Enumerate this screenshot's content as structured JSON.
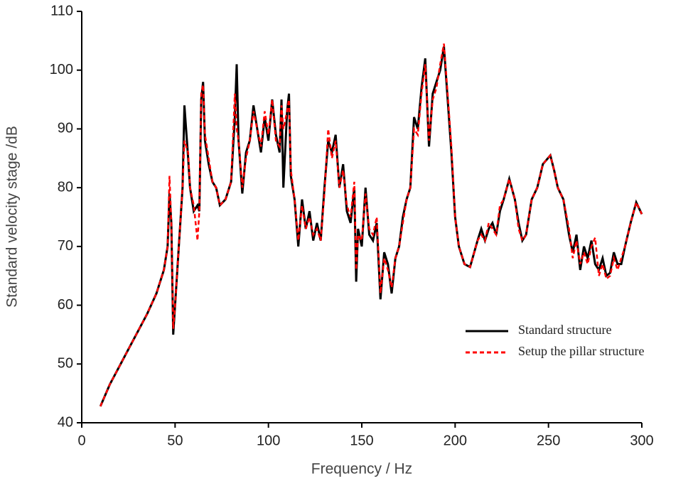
{
  "chart_data": {
    "type": "line",
    "xlabel": "Frequency / Hz",
    "ylabel": "Standard velocity stage /dB",
    "x": [
      10,
      15,
      20,
      25,
      30,
      35,
      40,
      44,
      46,
      47,
      48,
      49,
      50,
      52,
      54,
      55,
      57,
      58,
      60,
      62,
      63,
      64,
      65,
      66,
      68,
      70,
      72,
      74,
      77,
      80,
      82,
      83,
      84,
      86,
      88,
      90,
      92,
      94,
      96,
      98,
      100,
      102,
      104,
      106,
      107,
      108,
      110,
      111,
      112,
      114,
      116,
      118,
      120,
      122,
      124,
      126,
      128,
      130,
      132,
      134,
      136,
      138,
      140,
      142,
      144,
      146,
      147,
      148,
      150,
      152,
      154,
      156,
      158,
      160,
      162,
      164,
      166,
      168,
      170,
      172,
      174,
      176,
      178,
      180,
      182,
      184,
      186,
      188,
      190,
      192,
      194,
      196,
      198,
      200,
      202,
      205,
      208,
      212,
      214,
      216,
      218,
      220,
      222,
      224,
      226,
      229,
      232,
      234,
      236,
      238,
      241,
      244,
      247,
      251,
      253,
      255,
      258,
      261,
      263,
      265,
      267,
      269,
      271,
      273,
      275,
      277,
      279,
      281,
      283,
      285,
      287,
      289,
      291,
      294,
      297,
      300
    ],
    "series": [
      {
        "name": "Standard structure",
        "color": "#000000",
        "dash": false,
        "values": [
          42.8,
          46.5,
          49.5,
          52.5,
          55.5,
          58.5,
          62,
          66,
          70,
          79,
          74,
          55,
          60,
          70,
          80,
          94,
          85,
          80,
          76,
          77,
          76,
          95,
          98,
          88,
          84,
          81,
          80,
          77,
          78,
          81,
          92,
          101,
          88,
          79,
          86,
          88,
          94,
          90,
          86,
          92,
          88,
          95,
          89,
          86,
          95,
          80,
          93,
          96,
          82,
          78,
          70,
          78,
          73,
          76,
          71,
          74,
          71,
          80,
          88,
          86,
          89,
          80,
          84,
          76,
          74,
          80,
          64,
          73,
          70,
          80,
          72,
          71,
          74,
          61,
          69,
          67,
          62,
          68,
          70,
          75,
          78,
          80,
          92,
          90,
          97,
          102,
          87,
          96,
          98,
          100,
          104,
          95,
          86,
          75,
          70,
          67,
          66.5,
          71,
          73,
          71,
          73,
          74,
          72,
          76,
          78,
          81.5,
          78,
          74,
          71,
          72,
          78,
          80,
          84,
          85.5,
          83,
          80,
          78,
          72,
          69,
          72,
          66,
          70,
          68,
          71,
          67,
          66,
          68,
          65,
          65.5,
          69,
          67,
          67,
          70,
          74,
          77.5,
          75.5
        ]
      },
      {
        "name": "Setup the pillar structure",
        "color": "#ff0000",
        "dash": true,
        "values": [
          42.8,
          46.5,
          49.5,
          52.5,
          55.5,
          58.5,
          62,
          66,
          70,
          82,
          74,
          56,
          60,
          70,
          80,
          88,
          86,
          80,
          77,
          71,
          76,
          96,
          97.5,
          89,
          85,
          81,
          80,
          77,
          78,
          81,
          96,
          90,
          88,
          80,
          85,
          88,
          93,
          90,
          87,
          93,
          89,
          95,
          88,
          87,
          94,
          90,
          93,
          95,
          83,
          78,
          71,
          77,
          73,
          75,
          72,
          73,
          71,
          79,
          90,
          85,
          88,
          80,
          83,
          77,
          75,
          81,
          66,
          72,
          71,
          79,
          73,
          72,
          75,
          62,
          68,
          66,
          63,
          68,
          70,
          74,
          78,
          80,
          90,
          89,
          96,
          101,
          88,
          95,
          97,
          101,
          104.5,
          96,
          87,
          75,
          70,
          67,
          66.5,
          71,
          72,
          71,
          74,
          73,
          72,
          77,
          78,
          81.5,
          78,
          73,
          71,
          72,
          78,
          80,
          84,
          85.5,
          83,
          80,
          78,
          73,
          68,
          71,
          67,
          69,
          67,
          70,
          71.5,
          65,
          67,
          64.5,
          65,
          68,
          66,
          68,
          70,
          74,
          77.5,
          75.5
        ]
      }
    ],
    "xlim": [
      0,
      300
    ],
    "xticks": [
      0,
      50,
      100,
      150,
      200,
      250,
      300
    ],
    "ylim": [
      40,
      110
    ],
    "yticks": [
      40,
      50,
      60,
      70,
      80,
      90,
      100,
      110
    ],
    "legend": "lower right"
  }
}
